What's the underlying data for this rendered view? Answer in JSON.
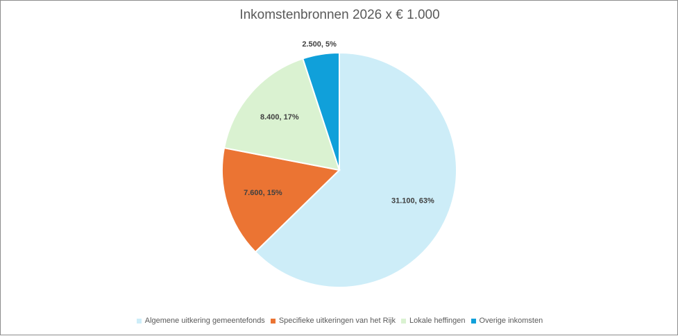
{
  "chart_data": {
    "type": "pie",
    "title": "Inkomstenbronnen 2026 x € 1.000",
    "slices": [
      {
        "name": "Algemene uitkering gemeentefonds",
        "value": 31100,
        "percent": 63,
        "label": "31.100, 63%",
        "color": "#cdedf8"
      },
      {
        "name": "Specifieke uitkeringen van het Rijk",
        "value": 7600,
        "percent": 15,
        "label": "7.600, 15%",
        "color": "#eb7433"
      },
      {
        "name": "Lokale heffingen",
        "value": 8400,
        "percent": 17,
        "label": "8.400, 17%",
        "color": "#daf2d1"
      },
      {
        "name": "Overige inkomsten",
        "value": 2500,
        "percent": 5,
        "label": "2.500, 5%",
        "color": "#10a0da"
      }
    ],
    "legend_position": "bottom"
  }
}
